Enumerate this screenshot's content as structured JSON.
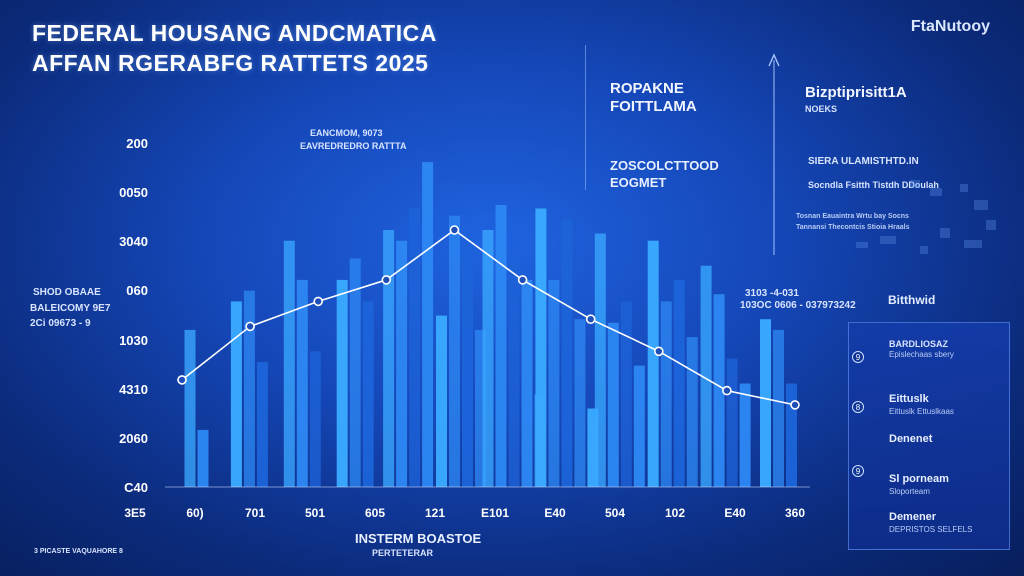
{
  "header": {
    "title_line1": "FEDERAL HOUSANG ANDCMATICA",
    "title_line2": "AFFAN RGERABFG RATTETS 2025",
    "brand": "FtaNutooy"
  },
  "annotations": {
    "top_left_1": "EANCMOM, 9073",
    "top_left_2": "EAVREDREDRO RATTTA",
    "mid_block_1": "ROPAKNE",
    "mid_block_2": "FOITTLAMA",
    "mid_block_3": "ZOSCOLCTTOOD",
    "mid_block_4": "EOGMET",
    "right_top_1": "Bizptiprisitt1A",
    "right_top_2": "NOEKS",
    "right_line_1": "SIERA ULAMISTHTD.IN",
    "right_line_2": "Socndla Fsitth Tistdh DDoulah",
    "right_line_3": "Tosnan Eauaintra Wrtu bay Socns",
    "right_line_4": "Tannansi Thecontcis Stioia Hraals",
    "left_side_1": "SHOD OBAAE",
    "left_side_2": "BALEICOMY 9E7",
    "left_side_3": "2Ci 09673 - 9",
    "right_mid_1": "3103 -4-031",
    "right_mid_2": "103OC 0606 - 037973242",
    "bottom_center_1": "INSTERM BOASTOE",
    "bottom_center_2": "PERTETERAR",
    "bottom_left": "3 PICASTE VAQUAHORE 8"
  },
  "legend": {
    "title": "Bitthwid",
    "items": [
      {
        "marker": "9",
        "label": "BARDLIOSAZ",
        "sub": "Epislechaas sbery"
      },
      {
        "marker": "8",
        "label": "Eittuslk",
        "sub": "Eittuslk Ettuslkaas"
      },
      {
        "marker": "",
        "label": "Denenet",
        "sub": ""
      },
      {
        "marker": "9",
        "label": "Sl porneam",
        "sub": "Sloporteam"
      },
      {
        "marker": "",
        "label": "Demener",
        "sub": "DEPRISTOS SELFELS"
      }
    ]
  },
  "colors": {
    "bar_bright": "#3aa8ff",
    "bar_mid": "#2d86f2",
    "bar_dark": "#1d63d8",
    "line": "#ffffff",
    "marker": "#1e4fb8"
  },
  "chart_data": {
    "type": "bar",
    "y_ticks": [
      "200",
      "0050",
      "3040",
      "060",
      "1030",
      "4310",
      "2060",
      "C40"
    ],
    "x_ticks": [
      "3E5",
      "60)",
      "701",
      "501",
      "605",
      "121",
      "E101",
      "E40",
      "504",
      "102",
      "E40",
      "360"
    ],
    "bars": [
      {
        "group": 1,
        "values": [
          0.44,
          0.16
        ]
      },
      {
        "group": 2,
        "values": [
          0.52,
          0.55,
          0.35
        ]
      },
      {
        "group": 3,
        "values": [
          0.69,
          0.58,
          0.38
        ]
      },
      {
        "group": 4,
        "values": [
          0.58,
          0.64,
          0.52
        ]
      },
      {
        "group": 5,
        "values": [
          0.72,
          0.69,
          0.78,
          0.91
        ]
      },
      {
        "group": 6,
        "values": [
          0.48,
          0.76,
          0.68,
          0.44
        ]
      },
      {
        "group": 7,
        "values": [
          0.72,
          0.79,
          0.64,
          0.58,
          0.26
        ]
      },
      {
        "group": 8,
        "values": [
          0.78,
          0.58,
          0.75,
          0.47,
          0.22
        ]
      },
      {
        "group": 9,
        "values": [
          0.71,
          0.46,
          0.52,
          0.34
        ]
      },
      {
        "group": 10,
        "values": [
          0.69,
          0.52,
          0.58,
          0.42
        ]
      },
      {
        "group": 11,
        "values": [
          0.62,
          0.54,
          0.36,
          0.29
        ]
      },
      {
        "group": 12,
        "values": [
          0.47,
          0.44,
          0.29
        ]
      }
    ],
    "line": {
      "x_index": [
        0,
        1,
        2,
        3,
        4,
        5,
        6,
        7,
        8,
        9
      ],
      "values": [
        0.3,
        0.45,
        0.52,
        0.58,
        0.72,
        0.58,
        0.47,
        0.38,
        0.27,
        0.23
      ]
    },
    "grid": false,
    "legend_position": "right"
  }
}
